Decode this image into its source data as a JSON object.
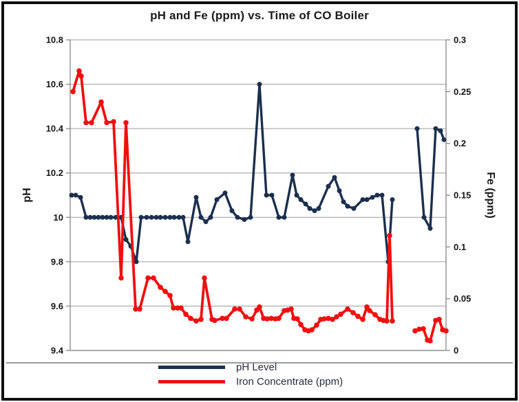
{
  "title": "pH and Fe (ppm) vs. Time of CO Boiler",
  "axes": {
    "left": {
      "title": "pH",
      "tick_labels": [
        "10.8",
        "10.6",
        "10.4",
        "10.2",
        "10",
        "9.8",
        "9.6",
        "9.4"
      ],
      "tick_values": [
        10.8,
        10.6,
        10.4,
        10.2,
        10.0,
        9.8,
        9.6,
        9.4
      ]
    },
    "right": {
      "title": "Fe (ppm)",
      "tick_labels": [
        "0.3",
        "0.25",
        "0.2",
        "0.15",
        "0.1",
        "0.05",
        "0"
      ],
      "tick_values": [
        0.3,
        0.25,
        0.2,
        0.15,
        0.1,
        0.05,
        0
      ]
    }
  },
  "legend": {
    "items": [
      {
        "label": "pH Level",
        "color": "#1b2f4e"
      },
      {
        "label": "Iron Concentrate (ppm)",
        "color": "#f20f0f"
      }
    ]
  },
  "style": {
    "grid_color": "#9c9c9c",
    "axis_color": "#8f8f8f",
    "tick_label_color": "#141414"
  },
  "chart_data": {
    "type": "line",
    "title": "pH and Fe (ppm) vs. Time of CO Boiler",
    "xlabel": "",
    "x_note": "time axis has no visible tick labels; x is pixel offset along the axis (0-546)",
    "left_ylabel": "pH",
    "right_ylabel": "Fe (ppm)",
    "left_ylim": [
      9.4,
      10.8
    ],
    "right_ylim": [
      0,
      0.3
    ],
    "grid": "horizontal",
    "legend_position": "bottom",
    "series": [
      {
        "id": "ph",
        "name": "pH Level",
        "axis": "left",
        "color": "#1b2f4e",
        "width": 3.4,
        "marker_r": 3.5,
        "points": [
          [
            2,
            10.1
          ],
          [
            8,
            10.1
          ],
          [
            15,
            10.09
          ],
          [
            23,
            10.0
          ],
          [
            29,
            10.0
          ],
          [
            35,
            10.0
          ],
          [
            41,
            10.0
          ],
          [
            47,
            10.0
          ],
          [
            53,
            10.0
          ],
          [
            59,
            10.0
          ],
          [
            66,
            10.0
          ],
          [
            74,
            10.0
          ],
          [
            81,
            9.9
          ],
          [
            88,
            9.87
          ],
          [
            96,
            9.8
          ],
          [
            103,
            10.0
          ],
          [
            111,
            10.0
          ],
          [
            118,
            10.0
          ],
          [
            125,
            10.0
          ],
          [
            131,
            10.0
          ],
          [
            138,
            10.0
          ],
          [
            145,
            10.0
          ],
          [
            151,
            10.0
          ],
          [
            158,
            10.0
          ],
          [
            164,
            10.0
          ],
          [
            171,
            9.89
          ],
          [
            183,
            10.09
          ],
          [
            190,
            10.0
          ],
          [
            197,
            9.98
          ],
          [
            204,
            10.0
          ],
          [
            213,
            10.08
          ],
          [
            225,
            10.11
          ],
          [
            235,
            10.03
          ],
          [
            243,
            10.0
          ],
          [
            253,
            9.99
          ],
          [
            262,
            10.0
          ],
          [
            275,
            10.6
          ],
          [
            285,
            10.1
          ],
          [
            293,
            10.1
          ],
          [
            303,
            10.0
          ],
          [
            311,
            10.0
          ],
          [
            323,
            10.19
          ],
          [
            329,
            10.1
          ],
          [
            335,
            10.08
          ],
          [
            342,
            10.06
          ],
          [
            348,
            10.04
          ],
          [
            355,
            10.03
          ],
          [
            361,
            10.04
          ],
          [
            375,
            10.14
          ],
          [
            384,
            10.18
          ],
          [
            391,
            10.12
          ],
          [
            397,
            10.07
          ],
          [
            403,
            10.05
          ],
          [
            412,
            10.04
          ],
          [
            425,
            10.08
          ],
          [
            431,
            10.08
          ],
          [
            439,
            10.09
          ],
          [
            446,
            10.1
          ],
          [
            453,
            10.1
          ],
          [
            462,
            9.8
          ],
          [
            468,
            10.08
          ],
          null,
          [
            504,
            10.4
          ],
          [
            514,
            10.0
          ],
          [
            523,
            9.95
          ],
          [
            531,
            10.4
          ],
          [
            538,
            10.39
          ],
          [
            543,
            10.35
          ]
        ]
      },
      {
        "id": "fe",
        "name": "Iron Concentrate (ppm)",
        "axis": "right",
        "color": "#f20f0f",
        "width": 3.8,
        "marker_r": 3.8,
        "points": [
          [
            4,
            0.25
          ],
          [
            13,
            0.27
          ],
          [
            16,
            0.265
          ],
          [
            23,
            0.22
          ],
          [
            31,
            0.22
          ],
          [
            45,
            0.24
          ],
          [
            53,
            0.22
          ],
          [
            63,
            0.221
          ],
          [
            74,
            0.07
          ],
          [
            81,
            0.22
          ],
          [
            95,
            0.04
          ],
          [
            101,
            0.04
          ],
          [
            113,
            0.07
          ],
          [
            121,
            0.07
          ],
          [
            131,
            0.061
          ],
          [
            138,
            0.057
          ],
          [
            145,
            0.053
          ],
          [
            150,
            0.041
          ],
          [
            156,
            0.041
          ],
          [
            161,
            0.041
          ],
          [
            168,
            0.035
          ],
          [
            175,
            0.031
          ],
          [
            183,
            0.0285
          ],
          [
            190,
            0.03
          ],
          [
            195,
            0.07
          ],
          [
            206,
            0.03
          ],
          [
            210,
            0.029
          ],
          [
            221,
            0.031
          ],
          [
            227,
            0.031
          ],
          [
            239,
            0.04
          ],
          [
            246,
            0.04
          ],
          [
            255,
            0.0325
          ],
          [
            264,
            0.0305
          ],
          [
            271,
            0.039
          ],
          [
            275,
            0.042
          ],
          [
            281,
            0.031
          ],
          [
            286,
            0.0305
          ],
          [
            292,
            0.031
          ],
          [
            298,
            0.0305
          ],
          [
            303,
            0.031
          ],
          [
            311,
            0.0385
          ],
          [
            316,
            0.039
          ],
          [
            321,
            0.04
          ],
          [
            325,
            0.031
          ],
          [
            330,
            0.0305
          ],
          [
            335,
            0.025
          ],
          [
            341,
            0.02
          ],
          [
            346,
            0.019
          ],
          [
            351,
            0.02
          ],
          [
            358,
            0.0245
          ],
          [
            364,
            0.03
          ],
          [
            369,
            0.0305
          ],
          [
            375,
            0.031
          ],
          [
            381,
            0.03
          ],
          [
            387,
            0.0325
          ],
          [
            393,
            0.035
          ],
          [
            403,
            0.04
          ],
          [
            411,
            0.0365
          ],
          [
            418,
            0.033
          ],
          [
            425,
            0.03
          ],
          [
            431,
            0.042
          ],
          [
            435,
            0.0385
          ],
          [
            443,
            0.0345
          ],
          [
            450,
            0.03
          ],
          [
            455,
            0.029
          ],
          [
            460,
            0.0285
          ],
          [
            464,
            0.111
          ],
          [
            468,
            0.0285
          ],
          null,
          [
            501,
            0.019
          ],
          [
            507,
            0.0205
          ],
          [
            513,
            0.021
          ],
          [
            519,
            0.01
          ],
          [
            523,
            0.0093
          ],
          [
            531,
            0.029
          ],
          [
            536,
            0.03
          ],
          [
            541,
            0.02
          ],
          [
            546,
            0.019
          ]
        ]
      }
    ]
  }
}
